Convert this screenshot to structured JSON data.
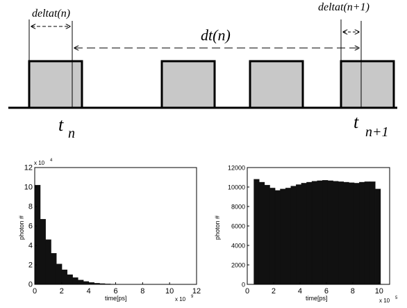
{
  "timing_diagram": {
    "labels": {
      "deltat_n": "deltat(n)",
      "deltat_n1": "deltat(n+1)",
      "dt_n": "dt(n)",
      "t_n_base": "t",
      "t_n_sub": "n",
      "t_n1_base": "t",
      "t_n1_sub": "n+1"
    },
    "colors": {
      "pulse_fill": "#c8c8c8",
      "stroke": "#000000"
    }
  },
  "chart_data": [
    {
      "type": "bar",
      "ylabel": "photon #",
      "xlabel": "time[ps]",
      "y_multiplier": "x 10",
      "y_multiplier_exp": "4",
      "x_multiplier": "x 10",
      "x_multiplier_exp": "9",
      "xlim": [
        0,
        12
      ],
      "ylim": [
        0,
        12
      ],
      "xticks": [
        0,
        2,
        4,
        6,
        8,
        10,
        12
      ],
      "yticks": [
        0,
        2,
        4,
        6,
        8,
        10,
        12
      ],
      "bin_width": 0.4,
      "values": [
        10.2,
        6.7,
        4.6,
        3.2,
        2.1,
        1.5,
        1.0,
        0.7,
        0.45,
        0.3,
        0.2,
        0.12,
        0.08,
        0.05,
        0.03,
        0.02,
        0.01,
        0.01,
        0.005,
        0.003
      ],
      "grid": false,
      "color": "#111111"
    },
    {
      "type": "bar",
      "ylabel": "photon #",
      "xlabel": "time[ps]",
      "x_multiplier": "x 10",
      "x_multiplier_exp": "5",
      "xlim": [
        0,
        10.8
      ],
      "ylim": [
        0,
        12000
      ],
      "xticks": [
        0,
        2,
        4,
        6,
        8,
        10
      ],
      "yticks": [
        0,
        2000,
        4000,
        6000,
        8000,
        10000,
        12000
      ],
      "bin_start": 0.5,
      "bin_width": 0.4,
      "values": [
        10800,
        10500,
        10200,
        9900,
        9650,
        9800,
        9900,
        10100,
        10250,
        10400,
        10500,
        10600,
        10650,
        10700,
        10650,
        10600,
        10550,
        10500,
        10450,
        10400,
        10500,
        10550,
        10550,
        9800
      ],
      "grid": false,
      "color": "#111111"
    }
  ]
}
